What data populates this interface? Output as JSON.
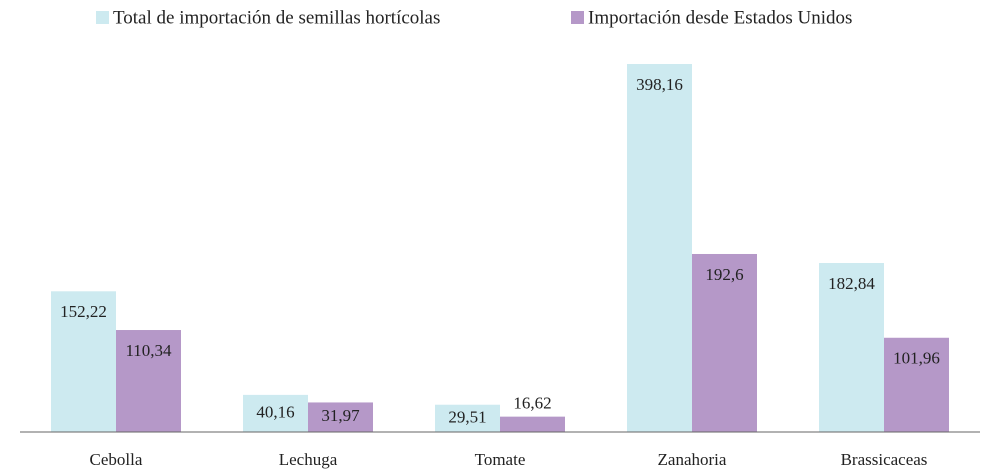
{
  "chart_data": {
    "type": "bar",
    "categories": [
      "Cebolla",
      "Lechuga",
      "Tomate",
      "Zanahoria",
      "Brassicaceas"
    ],
    "series": [
      {
        "name": "Total de importación de semillas hortícolas",
        "color": "#cdeaf0",
        "values": [
          152.22,
          40.16,
          29.51,
          398.16,
          182.84
        ],
        "value_labels": [
          "152,22",
          "40,16",
          "29,51",
          "398,16",
          "182,84"
        ]
      },
      {
        "name": "Importación desde Estados Unidos",
        "color": "#b598c8",
        "values": [
          110.34,
          31.97,
          16.62,
          192.6,
          101.96
        ],
        "value_labels": [
          "110,34",
          "31,97",
          "16,62",
          "192,6",
          "101,96"
        ]
      }
    ]
  }
}
